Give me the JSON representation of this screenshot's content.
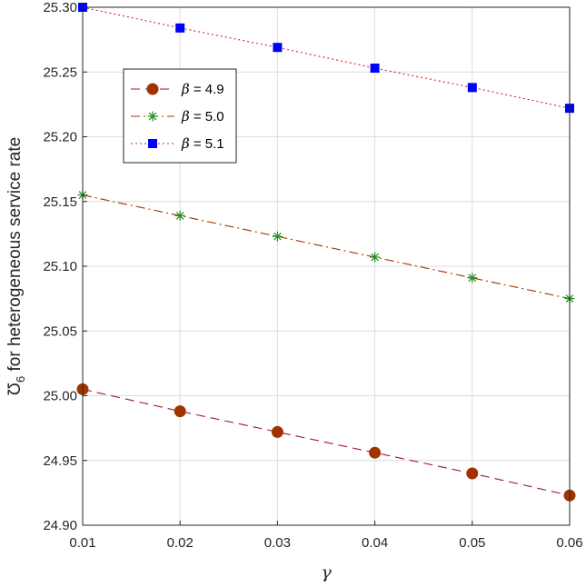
{
  "chart_data": {
    "type": "line",
    "title": "",
    "xlabel": "γ",
    "ylabel": "Ʊ",
    "ylabel_subscript": "6",
    "ylabel_suffix": " for heterogeneous service rate",
    "x": [
      0.01,
      0.02,
      0.03,
      0.04,
      0.05,
      0.06
    ],
    "x_ticks": [
      "0.01",
      "0.02",
      "0.03",
      "0.04",
      "0.05",
      "0.06"
    ],
    "xlim": [
      0.01,
      0.06
    ],
    "ylim": [
      24.9,
      25.3
    ],
    "y_ticks": [
      "24.90",
      "24.95",
      "25.00",
      "25.05",
      "25.10",
      "25.15",
      "25.20",
      "25.25",
      "25.30"
    ],
    "grid": true,
    "legend_position": "upper-left",
    "series": [
      {
        "name_symbol": "β",
        "name_value": " = 4.9",
        "values": [
          25.005,
          24.988,
          24.972,
          24.956,
          24.94,
          24.923
        ],
        "line_color": "#A2142F",
        "marker_color": "#A23300",
        "line_style": "dashed",
        "marker": "circle"
      },
      {
        "name_symbol": "β",
        "name_value": " = 5.0",
        "values": [
          25.155,
          25.139,
          25.123,
          25.107,
          25.091,
          25.075
        ],
        "line_color": "#A23300",
        "marker_color": "#1E8C1E",
        "line_style": "dashdot",
        "marker": "asterisk"
      },
      {
        "name_symbol": "β",
        "name_value": " = 5.1",
        "values": [
          25.3,
          25.284,
          25.269,
          25.253,
          25.238,
          25.222
        ],
        "line_color": "#E02020",
        "marker_color": "#0000FF",
        "line_style": "dotted",
        "marker": "square"
      }
    ]
  }
}
